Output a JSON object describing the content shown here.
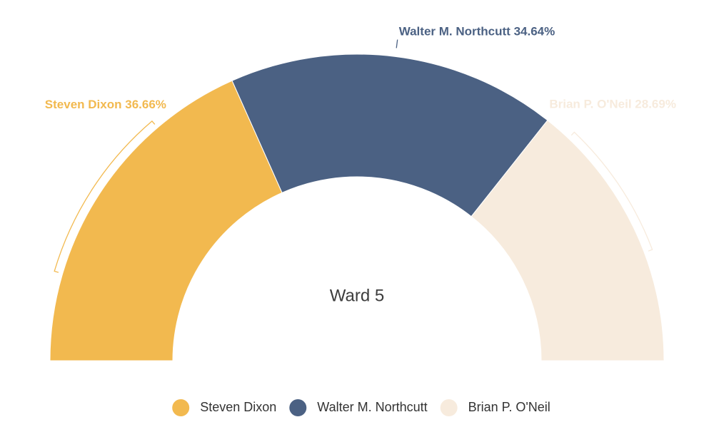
{
  "chart_data": {
    "type": "half-donut",
    "center_label": "Ward 5",
    "categories": [
      "Steven Dixon",
      "Walter M. Northcutt",
      "Brian P. O'Neil"
    ],
    "values": [
      36.66,
      34.64,
      28.69
    ],
    "value_labels": [
      "36.66%",
      "34.64%",
      "28.69%"
    ],
    "colors": [
      "#f2b94f",
      "#4b6183",
      "#f7ebdd"
    ],
    "legend": "bottom"
  }
}
